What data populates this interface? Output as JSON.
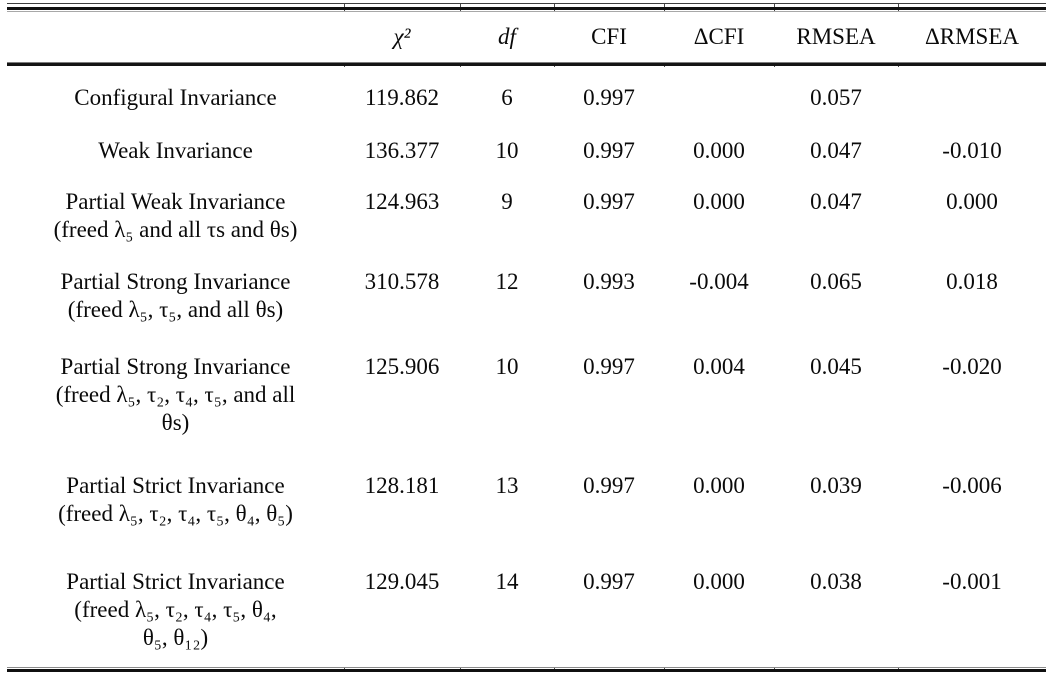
{
  "chart_data": {
    "type": "table",
    "columns": [
      "",
      "χ²",
      "df",
      "CFI",
      "ΔCFI",
      "RMSEA",
      "ΔRMSEA"
    ],
    "rows": [
      {
        "model": "Configural Invariance",
        "note": "",
        "chi2": "119.862",
        "df": "6",
        "cfi": "0.997",
        "delta_cfi": "",
        "rmsea": "0.057",
        "delta_rmsea": ""
      },
      {
        "model": "Weak Invariance",
        "note": "",
        "chi2": "136.377",
        "df": "10",
        "cfi": "0.997",
        "delta_cfi": "0.000",
        "rmsea": "0.047",
        "delta_rmsea": "-0.010"
      },
      {
        "model": "Partial Weak Invariance",
        "note": "(freed λ₅ and all τs and θs)",
        "chi2": "124.963",
        "df": "9",
        "cfi": "0.997",
        "delta_cfi": "0.000",
        "rmsea": "0.047",
        "delta_rmsea": "0.000"
      },
      {
        "model": "Partial Strong Invariance",
        "note": "(freed λ₅, τ₅, and all θs)",
        "chi2": "310.578",
        "df": "12",
        "cfi": "0.993",
        "delta_cfi": "-0.004",
        "rmsea": "0.065",
        "delta_rmsea": "0.018"
      },
      {
        "model": "Partial Strong Invariance",
        "note": "(freed λ₅, τ₂, τ₄, τ₅, and all\nθs)",
        "chi2": "125.906",
        "df": "10",
        "cfi": "0.997",
        "delta_cfi": "0.004",
        "rmsea": "0.045",
        "delta_rmsea": "-0.020"
      },
      {
        "model": "Partial Strict Invariance",
        "note": "(freed λ₅, τ₂, τ₄, τ₅, θ₄, θ₅)",
        "chi2": "128.181",
        "df": "13",
        "cfi": "0.997",
        "delta_cfi": "0.000",
        "rmsea": "0.039",
        "delta_rmsea": "-0.006"
      },
      {
        "model": "Partial Strict Invariance",
        "note": "(freed λ₅, τ₂, τ₄, τ₅, θ₄,\nθ₅, θ₁₂)",
        "chi2": "129.045",
        "df": "14",
        "cfi": "0.997",
        "delta_cfi": "0.000",
        "rmsea": "0.038",
        "delta_rmsea": "-0.001"
      }
    ]
  }
}
